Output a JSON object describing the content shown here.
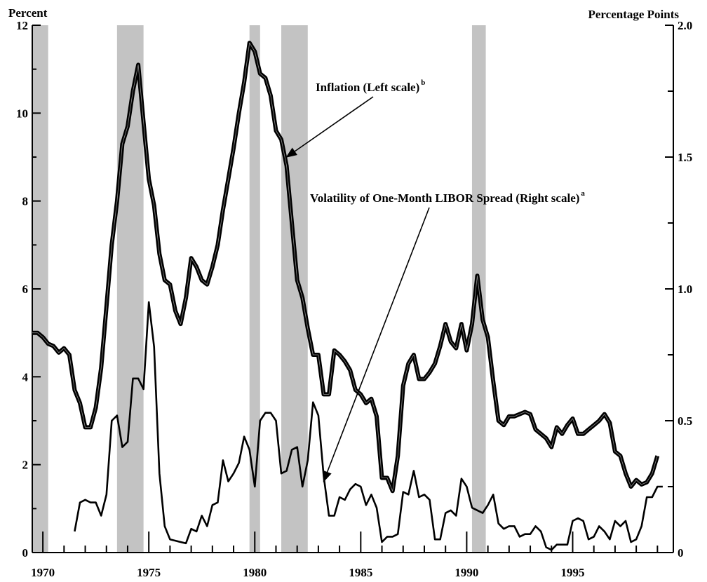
{
  "chart_data": {
    "type": "line",
    "left_axis_label": "Percent",
    "right_axis_label": "Percentage Points",
    "xlim": [
      1969.5,
      1999.75
    ],
    "left_ylim": [
      0,
      12
    ],
    "right_ylim": [
      0,
      2.0
    ],
    "x_ticks": [
      {
        "value": 1970,
        "label": "1970"
      },
      {
        "value": 1975,
        "label": "1975"
      },
      {
        "value": 1980,
        "label": "1980"
      },
      {
        "value": 1985,
        "label": "1985"
      },
      {
        "value": 1990,
        "label": "1990"
      },
      {
        "value": 1995,
        "label": "1995"
      }
    ],
    "left_ticks": [
      {
        "value": 0,
        "label": "0"
      },
      {
        "value": 2,
        "label": "2"
      },
      {
        "value": 4,
        "label": "4"
      },
      {
        "value": 6,
        "label": "6"
      },
      {
        "value": 8,
        "label": "8"
      },
      {
        "value": 10,
        "label": "10"
      },
      {
        "value": 12,
        "label": "12"
      }
    ],
    "right_ticks": [
      {
        "value": 0,
        "label": "0"
      },
      {
        "value": 0.5,
        "label": "0.5"
      },
      {
        "value": 1.0,
        "label": "1.0"
      },
      {
        "value": 1.5,
        "label": "1.5"
      },
      {
        "value": 2.0,
        "label": "2.0"
      }
    ],
    "recessions": [
      [
        1969.5,
        1970.25
      ],
      [
        1973.5,
        1974.75
      ],
      [
        1979.75,
        1980.25
      ],
      [
        1981.25,
        1982.5
      ],
      [
        1990.25,
        1990.9
      ]
    ],
    "series": [
      {
        "name": "Inflation (Left scale)",
        "name_sup": "b",
        "axis": "left",
        "points": [
          [
            1969.5,
            5.0
          ],
          [
            1969.75,
            5.0
          ],
          [
            1970.0,
            4.9
          ],
          [
            1970.25,
            4.75
          ],
          [
            1970.5,
            4.7
          ],
          [
            1970.75,
            4.55
          ],
          [
            1971.0,
            4.65
          ],
          [
            1971.25,
            4.5
          ],
          [
            1971.5,
            3.7
          ],
          [
            1971.75,
            3.4
          ],
          [
            1972.0,
            2.85
          ],
          [
            1972.25,
            2.85
          ],
          [
            1972.5,
            3.3
          ],
          [
            1972.75,
            4.2
          ],
          [
            1973.0,
            5.6
          ],
          [
            1973.25,
            7.0
          ],
          [
            1973.5,
            8.0
          ],
          [
            1973.75,
            9.3
          ],
          [
            1974.0,
            9.7
          ],
          [
            1974.25,
            10.5
          ],
          [
            1974.5,
            11.1
          ],
          [
            1974.75,
            9.8
          ],
          [
            1975.0,
            8.5
          ],
          [
            1975.25,
            7.9
          ],
          [
            1975.5,
            6.8
          ],
          [
            1975.75,
            6.2
          ],
          [
            1976.0,
            6.1
          ],
          [
            1976.25,
            5.5
          ],
          [
            1976.5,
            5.2
          ],
          [
            1976.75,
            5.8
          ],
          [
            1977.0,
            6.7
          ],
          [
            1977.25,
            6.5
          ],
          [
            1977.5,
            6.2
          ],
          [
            1977.75,
            6.1
          ],
          [
            1978.0,
            6.5
          ],
          [
            1978.25,
            7.0
          ],
          [
            1978.5,
            7.8
          ],
          [
            1978.75,
            8.5
          ],
          [
            1979.0,
            9.2
          ],
          [
            1979.25,
            10.0
          ],
          [
            1979.5,
            10.7
          ],
          [
            1979.75,
            11.6
          ],
          [
            1980.0,
            11.4
          ],
          [
            1980.25,
            10.9
          ],
          [
            1980.5,
            10.8
          ],
          [
            1980.75,
            10.4
          ],
          [
            1981.0,
            9.6
          ],
          [
            1981.25,
            9.4
          ],
          [
            1981.5,
            8.8
          ],
          [
            1981.75,
            7.5
          ],
          [
            1982.0,
            6.2
          ],
          [
            1982.25,
            5.8
          ],
          [
            1982.5,
            5.1
          ],
          [
            1982.75,
            4.5
          ],
          [
            1983.0,
            4.5
          ],
          [
            1983.25,
            3.6
          ],
          [
            1983.5,
            3.6
          ],
          [
            1983.75,
            4.6
          ],
          [
            1984.0,
            4.5
          ],
          [
            1984.25,
            4.35
          ],
          [
            1984.5,
            4.15
          ],
          [
            1984.75,
            3.7
          ],
          [
            1985.0,
            3.6
          ],
          [
            1985.25,
            3.4
          ],
          [
            1985.5,
            3.5
          ],
          [
            1985.75,
            3.1
          ],
          [
            1986.0,
            1.7
          ],
          [
            1986.25,
            1.7
          ],
          [
            1986.5,
            1.4
          ],
          [
            1986.75,
            2.2
          ],
          [
            1987.0,
            3.8
          ],
          [
            1987.25,
            4.3
          ],
          [
            1987.5,
            4.5
          ],
          [
            1987.75,
            3.95
          ],
          [
            1988.0,
            3.95
          ],
          [
            1988.25,
            4.1
          ],
          [
            1988.5,
            4.3
          ],
          [
            1988.75,
            4.7
          ],
          [
            1989.0,
            5.2
          ],
          [
            1989.25,
            4.8
          ],
          [
            1989.5,
            4.65
          ],
          [
            1989.75,
            5.2
          ],
          [
            1990.0,
            4.6
          ],
          [
            1990.25,
            5.2
          ],
          [
            1990.5,
            6.3
          ],
          [
            1990.75,
            5.3
          ],
          [
            1991.0,
            4.9
          ],
          [
            1991.25,
            3.9
          ],
          [
            1991.5,
            3.0
          ],
          [
            1991.75,
            2.9
          ],
          [
            1992.0,
            3.1
          ],
          [
            1992.25,
            3.1
          ],
          [
            1992.5,
            3.15
          ],
          [
            1992.75,
            3.2
          ],
          [
            1993.0,
            3.15
          ],
          [
            1993.25,
            2.8
          ],
          [
            1993.5,
            2.7
          ],
          [
            1993.75,
            2.6
          ],
          [
            1994.0,
            2.4
          ],
          [
            1994.25,
            2.85
          ],
          [
            1994.5,
            2.7
          ],
          [
            1994.75,
            2.9
          ],
          [
            1995.0,
            3.05
          ],
          [
            1995.25,
            2.7
          ],
          [
            1995.5,
            2.7
          ],
          [
            1995.75,
            2.8
          ],
          [
            1996.0,
            2.9
          ],
          [
            1996.25,
            3.0
          ],
          [
            1996.5,
            3.15
          ],
          [
            1996.75,
            2.95
          ],
          [
            1997.0,
            2.3
          ],
          [
            1997.25,
            2.2
          ],
          [
            1997.5,
            1.8
          ],
          [
            1997.75,
            1.5
          ],
          [
            1998.0,
            1.65
          ],
          [
            1998.25,
            1.55
          ],
          [
            1998.5,
            1.6
          ],
          [
            1998.75,
            1.8
          ],
          [
            1999.0,
            2.2
          ]
        ]
      },
      {
        "name": "Volatility of One-Month LIBOR Spread (Right scale)",
        "name_sup": "a",
        "axis": "right",
        "points": [
          [
            1971.5,
            0.08
          ],
          [
            1971.75,
            0.19
          ],
          [
            1972.0,
            0.2
          ],
          [
            1972.25,
            0.19
          ],
          [
            1972.5,
            0.19
          ],
          [
            1972.75,
            0.14
          ],
          [
            1973.0,
            0.22
          ],
          [
            1973.25,
            0.5
          ],
          [
            1973.5,
            0.52
          ],
          [
            1973.75,
            0.4
          ],
          [
            1974.0,
            0.42
          ],
          [
            1974.25,
            0.66
          ],
          [
            1974.5,
            0.66
          ],
          [
            1974.75,
            0.62
          ],
          [
            1975.0,
            0.95
          ],
          [
            1975.25,
            0.78
          ],
          [
            1975.5,
            0.3
          ],
          [
            1975.75,
            0.1
          ],
          [
            1976.0,
            0.05
          ],
          [
            1976.25,
            0.045
          ],
          [
            1976.5,
            0.04
          ],
          [
            1976.75,
            0.035
          ],
          [
            1977.0,
            0.09
          ],
          [
            1977.25,
            0.08
          ],
          [
            1977.5,
            0.14
          ],
          [
            1977.75,
            0.1
          ],
          [
            1978.0,
            0.18
          ],
          [
            1978.25,
            0.19
          ],
          [
            1978.5,
            0.35
          ],
          [
            1978.75,
            0.27
          ],
          [
            1979.0,
            0.3
          ],
          [
            1979.25,
            0.34
          ],
          [
            1979.5,
            0.44
          ],
          [
            1979.75,
            0.39
          ],
          [
            1980.0,
            0.25
          ],
          [
            1980.25,
            0.5
          ],
          [
            1980.5,
            0.53
          ],
          [
            1980.75,
            0.53
          ],
          [
            1981.0,
            0.5
          ],
          [
            1981.25,
            0.3
          ],
          [
            1981.5,
            0.31
          ],
          [
            1981.75,
            0.39
          ],
          [
            1982.0,
            0.4
          ],
          [
            1982.25,
            0.25
          ],
          [
            1982.5,
            0.35
          ],
          [
            1982.75,
            0.57
          ],
          [
            1983.0,
            0.52
          ],
          [
            1983.25,
            0.29
          ],
          [
            1983.5,
            0.14
          ],
          [
            1983.75,
            0.14
          ],
          [
            1984.0,
            0.21
          ],
          [
            1984.25,
            0.2
          ],
          [
            1984.5,
            0.24
          ],
          [
            1984.75,
            0.26
          ],
          [
            1985.0,
            0.25
          ],
          [
            1985.25,
            0.18
          ],
          [
            1985.5,
            0.22
          ],
          [
            1985.75,
            0.17
          ],
          [
            1986.0,
            0.04
          ],
          [
            1986.25,
            0.06
          ],
          [
            1986.5,
            0.06
          ],
          [
            1986.75,
            0.07
          ],
          [
            1987.0,
            0.23
          ],
          [
            1987.25,
            0.22
          ],
          [
            1987.5,
            0.31
          ],
          [
            1987.75,
            0.21
          ],
          [
            1988.0,
            0.22
          ],
          [
            1988.25,
            0.2
          ],
          [
            1988.5,
            0.05
          ],
          [
            1988.75,
            0.05
          ],
          [
            1989.0,
            0.15
          ],
          [
            1989.25,
            0.16
          ],
          [
            1989.5,
            0.14
          ],
          [
            1989.75,
            0.28
          ],
          [
            1990.0,
            0.25
          ],
          [
            1990.25,
            0.17
          ],
          [
            1990.5,
            0.16
          ],
          [
            1990.75,
            0.15
          ],
          [
            1991.0,
            0.18
          ],
          [
            1991.25,
            0.22
          ],
          [
            1991.5,
            0.11
          ],
          [
            1991.75,
            0.09
          ],
          [
            1992.0,
            0.1
          ],
          [
            1992.25,
            0.1
          ],
          [
            1992.5,
            0.06
          ],
          [
            1992.75,
            0.07
          ],
          [
            1993.0,
            0.07
          ],
          [
            1993.25,
            0.1
          ],
          [
            1993.5,
            0.08
          ],
          [
            1993.75,
            0.02
          ],
          [
            1994.0,
            0.01
          ],
          [
            1994.25,
            0.03
          ],
          [
            1994.5,
            0.03
          ],
          [
            1994.75,
            0.03
          ],
          [
            1995.0,
            0.12
          ],
          [
            1995.25,
            0.13
          ],
          [
            1995.5,
            0.12
          ],
          [
            1995.75,
            0.05
          ],
          [
            1996.0,
            0.06
          ],
          [
            1996.25,
            0.1
          ],
          [
            1996.5,
            0.08
          ],
          [
            1996.75,
            0.05
          ],
          [
            1997.0,
            0.12
          ],
          [
            1997.25,
            0.1
          ],
          [
            1997.5,
            0.12
          ],
          [
            1997.75,
            0.04
          ],
          [
            1998.0,
            0.05
          ],
          [
            1998.25,
            0.1
          ],
          [
            1998.5,
            0.21
          ],
          [
            1998.75,
            0.21
          ],
          [
            1999.0,
            0.25
          ],
          [
            1999.25,
            0.25
          ]
        ]
      }
    ],
    "annotations": [
      {
        "text": "Inflation (Left scale)",
        "sup": "b",
        "target_series": 0,
        "target_x": 1981.5,
        "target_y": 9.0
      },
      {
        "text": "Volatility of One-Month LIBOR Spread (Right scale)",
        "sup": "a",
        "target_series": 1,
        "target_x": 1983.25,
        "target_y": 0.27
      }
    ]
  }
}
